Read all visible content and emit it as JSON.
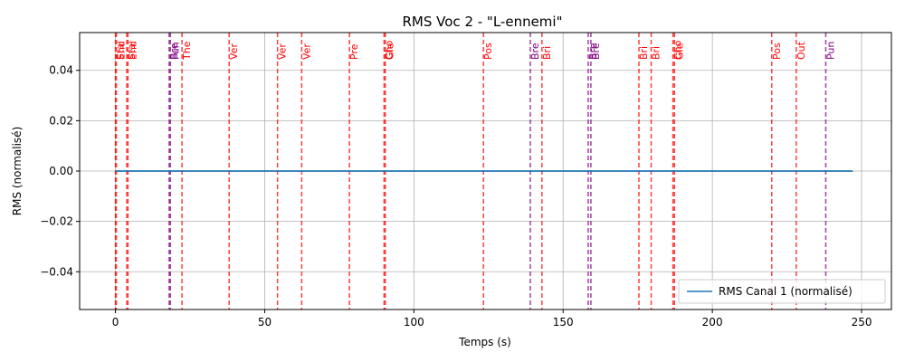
{
  "chart_data": {
    "type": "line",
    "title": "RMS Voc 2 - \"L-ennemi\"",
    "xlabel": "Temps (s)",
    "ylabel": "RMS (normalisé)",
    "xlim": [
      -12,
      260
    ],
    "ylim": [
      -0.055,
      0.055
    ],
    "xticks": [
      0,
      50,
      100,
      150,
      200,
      250
    ],
    "yticks": [
      -0.04,
      -0.02,
      0.0,
      0.02,
      0.04
    ],
    "ytick_labels": [
      "−0.04",
      "−0.02",
      "0.00",
      "0.02",
      "0.04"
    ],
    "grid": true,
    "legend": "bottom-right",
    "series": [
      {
        "name": "RMS Canal 1 (normalisé)",
        "color": "#1f77b4",
        "x": [
          0,
          247
        ],
        "y": [
          0.0,
          0.0
        ]
      }
    ],
    "markers": [
      {
        "x": 0.0,
        "label": "Sta",
        "color": "#ff0000"
      },
      {
        "x": 0.3,
        "label": "End",
        "color": "#ff0000"
      },
      {
        "x": 3.8,
        "label": "Sta",
        "color": "#ff0000"
      },
      {
        "x": 4.2,
        "label": "End",
        "color": "#ff0000"
      },
      {
        "x": 18.0,
        "label": "Bre",
        "color": "#800080"
      },
      {
        "x": 18.4,
        "label": "Fun",
        "color": "#800080"
      },
      {
        "x": 22.3,
        "label": "The",
        "color": "#ff0000"
      },
      {
        "x": 38.1,
        "label": "Ver",
        "color": "#ff0000"
      },
      {
        "x": 54.3,
        "label": "Ver",
        "color": "#ff0000"
      },
      {
        "x": 62.4,
        "label": "Ver",
        "color": "#ff0000"
      },
      {
        "x": 78.4,
        "label": "Pre",
        "color": "#ff0000"
      },
      {
        "x": 90.0,
        "label": "Cho",
        "color": "#ff0000"
      },
      {
        "x": 90.4,
        "label": "Gle",
        "color": "#ff0000"
      },
      {
        "x": 123.3,
        "label": "Pos",
        "color": "#ff0000"
      },
      {
        "x": 139.0,
        "label": "Bre",
        "color": "#800080"
      },
      {
        "x": 142.9,
        "label": "Bri",
        "color": "#ff0000"
      },
      {
        "x": 158.4,
        "label": "Bre",
        "color": "#800080"
      },
      {
        "x": 159.3,
        "label": "Bre",
        "color": "#800080"
      },
      {
        "x": 175.4,
        "label": "Bri",
        "color": "#ff0000"
      },
      {
        "x": 179.5,
        "label": "Bri",
        "color": "#ff0000"
      },
      {
        "x": 186.8,
        "label": "Cho",
        "color": "#ff0000"
      },
      {
        "x": 187.3,
        "label": "Gle",
        "color": "#ff0000"
      },
      {
        "x": 219.9,
        "label": "Pos",
        "color": "#ff0000"
      },
      {
        "x": 228.1,
        "label": "Out",
        "color": "#ff0000"
      },
      {
        "x": 238.0,
        "label": "Pun",
        "color": "#800080"
      }
    ]
  }
}
